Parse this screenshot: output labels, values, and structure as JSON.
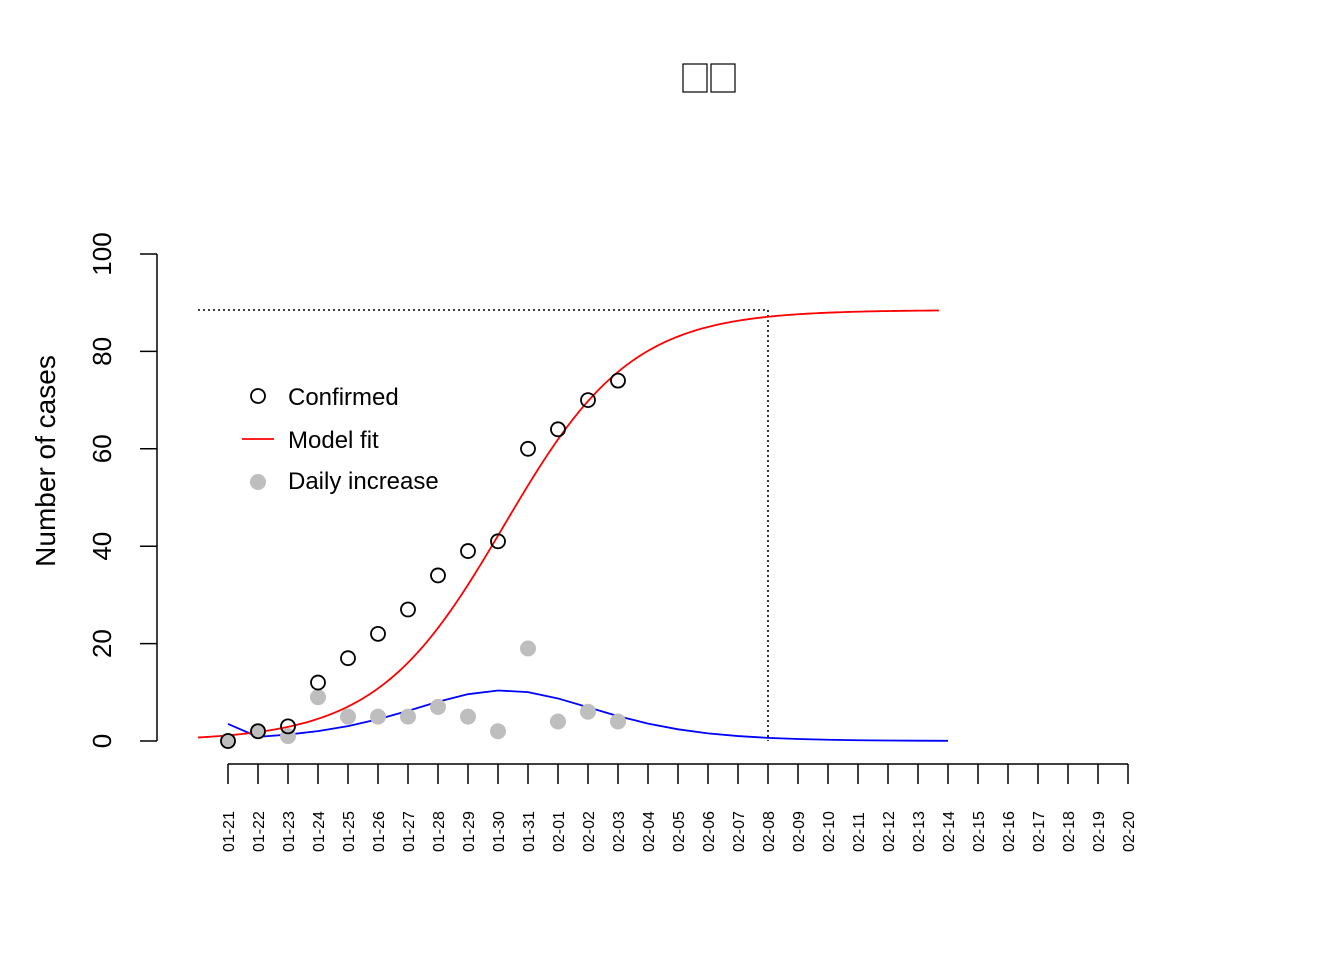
{
  "chart_data": {
    "type": "scatter",
    "title_glyph_count": 2,
    "ylabel": "Number of cases",
    "xlabel": "",
    "ylim": [
      0,
      100
    ],
    "y_ticks": [
      "0",
      "20",
      "40",
      "60",
      "80",
      "100"
    ],
    "x_tick_labels": [
      "01-21",
      "01-22",
      "01-23",
      "01-24",
      "01-25",
      "01-26",
      "01-27",
      "01-28",
      "01-29",
      "01-30",
      "01-31",
      "02-01",
      "02-02",
      "02-03",
      "02-04",
      "02-05",
      "02-06",
      "02-07",
      "02-08",
      "02-09",
      "02-10",
      "02-11",
      "02-12",
      "02-13",
      "02-14",
      "02-15",
      "02-16",
      "02-17",
      "02-18",
      "02-19",
      "02-20"
    ],
    "confirmed": [
      0,
      2,
      3,
      12,
      17,
      22,
      27,
      34,
      39,
      41,
      60,
      64,
      70,
      74
    ],
    "daily_increase": [
      0,
      2,
      1,
      9,
      5,
      5,
      5,
      7,
      5,
      2,
      19,
      4,
      6,
      4
    ],
    "model_fit": {
      "K": 88.5,
      "r": 0.47,
      "t0_index": 9.2,
      "x_from_index": -1,
      "x_to_index": 23.7,
      "color": "#ff0000"
    },
    "daily_fit": {
      "x_from_index": 0,
      "x_to_index": 24,
      "color": "#0000ff"
    },
    "plateau": {
      "value": 88.5,
      "date": "02-08"
    },
    "legend": {
      "position": "top-left",
      "items": [
        {
          "label": "Confirmed",
          "symbol": "open-circle",
          "color": "#000000"
        },
        {
          "label": "Model fit",
          "symbol": "line",
          "color": "#ff0000"
        },
        {
          "label": "Daily increase",
          "symbol": "filled-circle",
          "color": "#bebebe"
        }
      ]
    },
    "colors": {
      "confirmed": "#000000",
      "daily": "#bebebe",
      "model": "#ff0000",
      "daily_model": "#0000ff"
    }
  }
}
